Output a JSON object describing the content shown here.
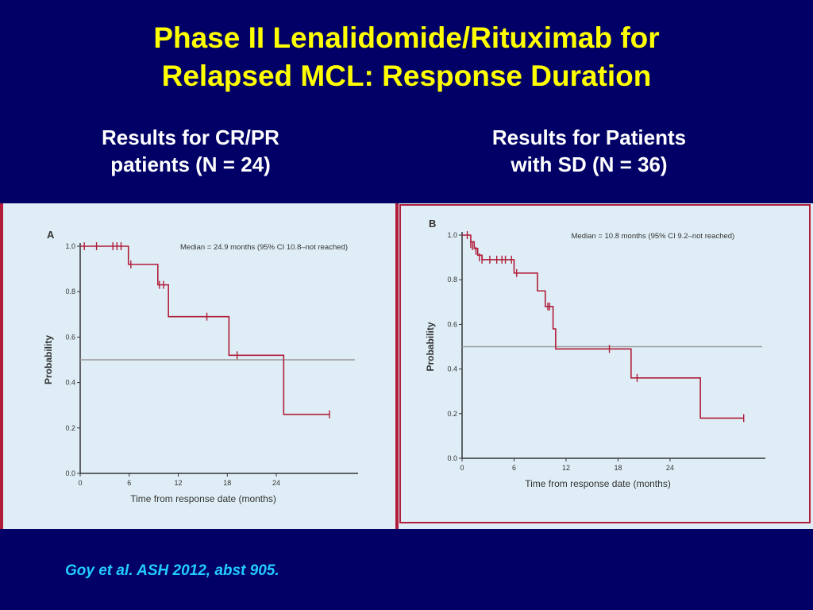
{
  "slide": {
    "title_line1": "Phase II Lenalidomide/Rituximab for",
    "title_line2": "Relapsed MCL: Response Duration",
    "left_heading_line1": "Results for CR/PR",
    "left_heading_line2": "patients (N = 24)",
    "right_heading_line1": "Results for Patients",
    "right_heading_line2": "with SD (N = 36)",
    "citation": "Goy et al. ASH 2012, abst 905.",
    "colors": {
      "background": "#000066",
      "title": "#FFFF00",
      "heading": "#FFFFFF",
      "citation": "#22CCFF",
      "panel": "#dfeef6",
      "curve": "#b01c3a",
      "median_line": "#999999"
    }
  },
  "chart_data": [
    {
      "type": "line",
      "panel_label": "A",
      "annotation": "Median = 24.9 months (95% CI 10.8–not reached)",
      "xlabel": "Time from response date (months)",
      "ylabel": "Probability",
      "xlim": [
        0,
        34
      ],
      "ylim": [
        0,
        1.0
      ],
      "x_ticks": [
        "0",
        "6",
        "12",
        "18",
        "24"
      ],
      "y_ticks": [
        "0.0",
        "0.2",
        "0.4",
        "0.6",
        "0.8",
        "1.0"
      ],
      "reference_line": 0.5,
      "steps": [
        [
          0,
          1.0
        ],
        [
          5.9,
          0.92
        ],
        [
          9.5,
          0.83
        ],
        [
          10.8,
          0.69
        ],
        [
          18.2,
          0.52
        ],
        [
          24.9,
          0.26
        ],
        [
          30.5,
          0.26
        ]
      ],
      "censored": [
        [
          0.5,
          1.0
        ],
        [
          2,
          1.0
        ],
        [
          4,
          1.0
        ],
        [
          4.5,
          1.0
        ],
        [
          5,
          1.0
        ],
        [
          6.2,
          0.92
        ],
        [
          9.7,
          0.83
        ],
        [
          10.2,
          0.83
        ],
        [
          15.5,
          0.69
        ],
        [
          19.2,
          0.52
        ],
        [
          30.5,
          0.26
        ]
      ]
    },
    {
      "type": "line",
      "panel_label": "B",
      "annotation": "Median = 10.8 months (95% CI 9.2–not reached)",
      "xlabel": "Time from response date (months)",
      "ylabel": "Probability",
      "xlim": [
        0,
        35
      ],
      "ylim": [
        0,
        1.0
      ],
      "x_ticks": [
        "0",
        "6",
        "12",
        "18",
        "24"
      ],
      "y_ticks": [
        "0.0",
        "0.2",
        "0.4",
        "0.6",
        "0.8",
        "1.0"
      ],
      "reference_line": 0.5,
      "steps": [
        [
          0,
          1.0
        ],
        [
          1.0,
          0.97
        ],
        [
          1.4,
          0.94
        ],
        [
          1.8,
          0.91
        ],
        [
          2.3,
          0.89
        ],
        [
          6.0,
          0.83
        ],
        [
          8.7,
          0.75
        ],
        [
          9.6,
          0.68
        ],
        [
          10.5,
          0.58
        ],
        [
          10.8,
          0.49
        ],
        [
          19.5,
          0.36
        ],
        [
          27.5,
          0.18
        ],
        [
          32.5,
          0.18
        ]
      ],
      "censored": [
        [
          0.6,
          1.0
        ],
        [
          1.0,
          0.96
        ],
        [
          1.2,
          0.95
        ],
        [
          1.6,
          0.93
        ],
        [
          2.0,
          0.9
        ],
        [
          2.3,
          0.89
        ],
        [
          3.2,
          0.89
        ],
        [
          4.0,
          0.89
        ],
        [
          4.6,
          0.89
        ],
        [
          5.0,
          0.89
        ],
        [
          5.7,
          0.89
        ],
        [
          6.3,
          0.83
        ],
        [
          9.9,
          0.68
        ],
        [
          10.1,
          0.68
        ],
        [
          17.0,
          0.49
        ],
        [
          20.2,
          0.36
        ],
        [
          32.5,
          0.18
        ]
      ]
    }
  ]
}
